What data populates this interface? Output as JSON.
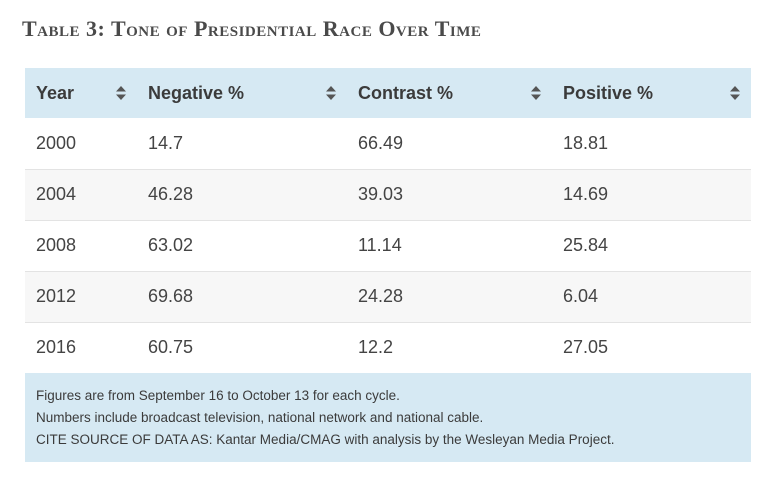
{
  "chart_data": {
    "type": "table",
    "title": "Table 3: Tone of Presidential Race Over Time",
    "columns": [
      "Year",
      "Negative %",
      "Contrast %",
      "Positive %"
    ],
    "rows": [
      [
        "2000",
        "14.7",
        "66.49",
        "18.81"
      ],
      [
        "2004",
        "46.28",
        "39.03",
        "14.69"
      ],
      [
        "2008",
        "63.02",
        "11.14",
        "25.84"
      ],
      [
        "2012",
        "69.68",
        "24.28",
        "6.04"
      ],
      [
        "2016",
        "60.75",
        "12.2",
        "27.05"
      ]
    ],
    "footnotes": [
      "Figures are from September 16 to October 13 for each cycle.",
      "Numbers include broadcast television, national network and national cable.",
      "CITE SOURCE OF DATA AS: Kantar Media/CMAG with analysis by the Wesleyan Media Project."
    ]
  },
  "colors": {
    "header_bg": "#d6e9f3",
    "footnote_bg": "#d6e9f3",
    "stripe_bg": "#f7f7f7",
    "text": "#444444"
  },
  "icons": {
    "sort": "sort-up-down-icon"
  }
}
